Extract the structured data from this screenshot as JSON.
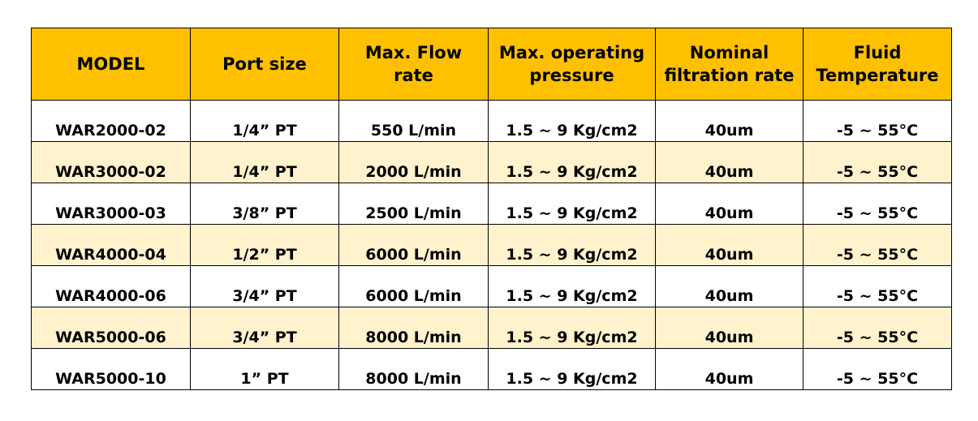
{
  "table": {
    "headers": [
      "MODEL",
      "Port size",
      "Max. Flow\nrate",
      "Max. operating\npressure",
      "Nominal\nfiltration rate",
      "Fluid\nTemperature"
    ],
    "rows": [
      [
        "WAR2000-02",
        "1/4”  PT",
        "550 L/min",
        "1.5 ~ 9 Kg/cm2",
        "40um",
        "-5 ~ 55°C"
      ],
      [
        "WAR3000-02",
        "1/4”  PT",
        "2000 L/min",
        "1.5 ~ 9 Kg/cm2",
        "40um",
        "-5 ~ 55°C"
      ],
      [
        "WAR3000-03",
        "3/8”  PT",
        "2500 L/min",
        "1.5 ~ 9 Kg/cm2",
        "40um",
        "-5 ~ 55°C"
      ],
      [
        "WAR4000-04",
        "1/2”  PT",
        "6000 L/min",
        "1.5 ~ 9 Kg/cm2",
        "40um",
        "-5 ~ 55°C"
      ],
      [
        "WAR4000-06",
        "3/4”  PT",
        "6000 L/min",
        "1.5 ~ 9 Kg/cm2",
        "40um",
        "-5 ~ 55°C"
      ],
      [
        "WAR5000-06",
        "3/4”  PT",
        "8000 L/min",
        "1.5 ~ 9 Kg/cm2",
        "40um",
        "-5 ~ 55°C"
      ],
      [
        "WAR5000-10",
        "1”  PT",
        "8000 L/min",
        "1.5 ~ 9 Kg/cm2",
        "40um",
        "-5 ~ 55°C"
      ]
    ]
  },
  "colors": {
    "header_background": "#ffc000",
    "striped_row_background": "#fff2cc",
    "plain_row_background": "#ffffff",
    "border": "#000000"
  }
}
